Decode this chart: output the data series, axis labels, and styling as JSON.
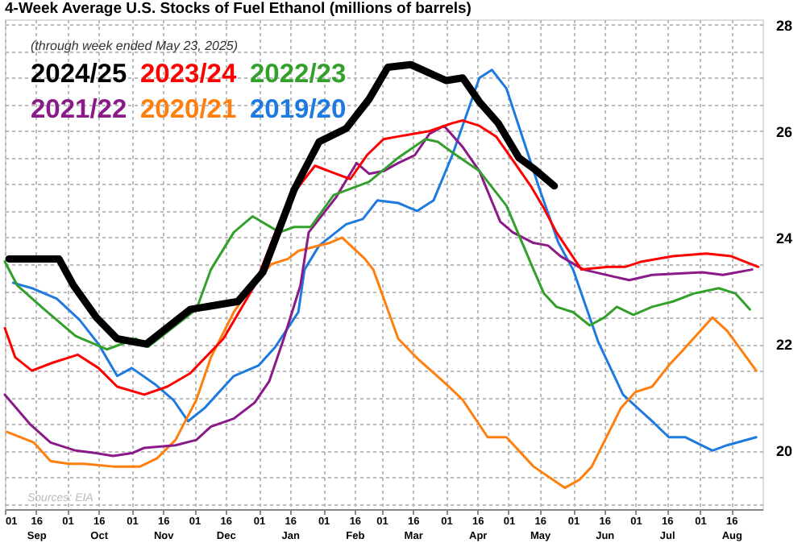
{
  "chart_data": {
    "type": "line",
    "title": "4-Week Average U.S. Stocks of Fuel Ethanol (millions of barrels)",
    "subtitle": "(through week ended May 23, 2025)",
    "xlim": [
      "2024-09-01",
      "2025-08-31"
    ],
    "xticks": [
      {
        "value": "2024-09-01",
        "label": "01"
      },
      {
        "value": "2024-09-16",
        "label": "16\nSep"
      },
      {
        "value": "2024-10-01",
        "label": "01"
      },
      {
        "value": "2024-10-16",
        "label": "16\nOct"
      },
      {
        "value": "2024-11-01",
        "label": "01"
      },
      {
        "value": "2024-11-16",
        "label": "16\nNov"
      },
      {
        "value": "2024-12-01",
        "label": "01"
      },
      {
        "value": "2024-12-16",
        "label": "16\nDec"
      },
      {
        "value": "2025-01-01",
        "label": "01"
      },
      {
        "value": "2025-01-16",
        "label": "16\nJan"
      },
      {
        "value": "2025-02-01",
        "label": "01"
      },
      {
        "value": "2025-02-16",
        "label": "16\nFeb"
      },
      {
        "value": "2025-03-01",
        "label": "01"
      },
      {
        "value": "2025-03-16",
        "label": "16\nMar"
      },
      {
        "value": "2025-04-01",
        "label": "01"
      },
      {
        "value": "2025-04-16",
        "label": "16\nApr"
      },
      {
        "value": "2025-05-01",
        "label": "01"
      },
      {
        "value": "2025-05-16",
        "label": "16\nMay"
      },
      {
        "value": "2025-06-01",
        "label": "01"
      },
      {
        "value": "2025-06-16",
        "label": "16\nJun"
      },
      {
        "value": "2025-07-01",
        "label": "01"
      },
      {
        "value": "2025-07-16",
        "label": "16\nJul"
      },
      {
        "value": "2025-08-01",
        "label": "01"
      },
      {
        "value": "2025-08-16",
        "label": "16\nAug"
      }
    ],
    "ylim": [
      18.9,
      28.1
    ],
    "yticks": [
      {
        "value": 19,
        "label": null
      },
      {
        "value": 19.5,
        "label": null
      },
      20,
      {
        "value": 20.5,
        "label": null
      },
      {
        "value": 21,
        "label": null
      },
      {
        "value": 21.5,
        "label": null
      },
      22,
      {
        "value": 22.5,
        "label": null
      },
      {
        "value": 23,
        "label": null
      },
      {
        "value": 23.5,
        "label": null
      },
      24,
      {
        "value": 24.5,
        "label": null
      },
      {
        "value": 25,
        "label": null
      },
      {
        "value": 25.5,
        "label": null
      },
      26,
      {
        "value": 26.5,
        "label": null
      },
      {
        "value": 27,
        "label": null
      },
      {
        "value": 27.5,
        "label": null
      },
      28
    ],
    "grid": true,
    "legend": "top left",
    "annotations": [
      "Sources: EIA"
    ],
    "series": [
      {
        "name": "2024/25",
        "color": "#000000",
        "x": [
          "2024-09-03",
          "2024-09-27",
          "2024-10-04",
          "2024-10-15",
          "2024-10-25",
          "2024-11-08",
          "2024-11-29",
          "2024-12-22",
          "2025-01-03",
          "2025-01-18",
          "2025-01-30",
          "2025-02-12",
          "2025-02-23",
          "2025-03-04",
          "2025-03-15",
          "2025-04-01",
          "2025-04-09",
          "2025-04-17",
          "2025-04-26",
          "2025-05-06",
          "2025-05-13",
          "2025-05-23"
        ],
        "values": [
          23.6,
          23.6,
          23.1,
          22.5,
          22.1,
          22.0,
          22.65,
          22.8,
          23.35,
          24.9,
          25.8,
          26.05,
          26.6,
          27.2,
          27.25,
          26.95,
          27.0,
          26.55,
          26.15,
          25.5,
          25.3,
          24.97
        ]
      },
      {
        "name": "2023/24",
        "color": "#ff0000",
        "x": [
          "2024-09-01",
          "2024-09-06",
          "2024-09-14",
          "2024-09-24",
          "2024-10-06",
          "2024-10-16",
          "2024-10-25",
          "2024-11-07",
          "2024-11-18",
          "2024-11-29",
          "2024-12-15",
          "2024-12-30",
          "2025-01-11",
          "2025-01-18",
          "2025-01-28",
          "2025-02-07",
          "2025-02-14",
          "2025-02-22",
          "2025-03-02",
          "2025-03-09",
          "2025-03-24",
          "2025-04-04",
          "2025-04-09",
          "2025-04-17",
          "2025-04-25",
          "2025-05-04",
          "2025-05-12",
          "2025-05-18",
          "2025-05-24",
          "2025-06-05",
          "2025-06-18",
          "2025-06-26",
          "2025-07-04",
          "2025-07-19",
          "2025-08-04",
          "2025-08-16",
          "2025-08-29"
        ],
        "values": [
          22.3,
          21.75,
          21.5,
          21.65,
          21.8,
          21.55,
          21.2,
          21.05,
          21.2,
          21.45,
          22.1,
          23.1,
          24.3,
          24.85,
          25.35,
          25.2,
          25.1,
          25.55,
          25.85,
          25.9,
          26.0,
          26.15,
          26.2,
          26.1,
          25.9,
          25.4,
          24.95,
          24.55,
          24.1,
          23.4,
          23.45,
          23.45,
          23.55,
          23.65,
          23.7,
          23.65,
          23.45
        ]
      },
      {
        "name": "2022/23",
        "color": "#33a02c",
        "x": [
          "2024-09-01",
          "2024-09-07",
          "2024-09-20",
          "2024-10-05",
          "2024-10-20",
          "2024-11-03",
          "2024-11-09",
          "2024-11-22",
          "2024-12-02",
          "2024-12-09",
          "2024-12-20",
          "2024-12-29",
          "2025-01-11",
          "2025-01-18",
          "2025-01-26",
          "2025-02-06",
          "2025-02-23",
          "2025-03-09",
          "2025-03-22",
          "2025-03-28",
          "2025-04-04",
          "2025-04-17",
          "2025-04-30",
          "2025-05-13",
          "2025-05-18",
          "2025-05-24",
          "2025-06-01",
          "2025-06-09",
          "2025-06-16",
          "2025-06-22",
          "2025-06-30",
          "2025-07-09",
          "2025-07-19",
          "2025-07-29",
          "2025-08-10",
          "2025-08-18",
          "2025-08-25"
        ],
        "values": [
          23.55,
          23.1,
          22.65,
          22.15,
          21.9,
          22.1,
          21.95,
          22.35,
          22.65,
          23.4,
          24.1,
          24.4,
          24.1,
          24.2,
          24.2,
          24.8,
          25.05,
          25.5,
          25.85,
          25.8,
          25.6,
          25.25,
          24.6,
          23.4,
          22.95,
          22.7,
          22.6,
          22.35,
          22.5,
          22.7,
          22.55,
          22.7,
          22.8,
          22.95,
          23.05,
          22.95,
          22.65
        ]
      },
      {
        "name": "2021/22",
        "color": "#8b1a89",
        "x": [
          "2024-09-01",
          "2024-09-13",
          "2024-09-23",
          "2024-10-05",
          "2024-10-15",
          "2024-10-23",
          "2024-11-01",
          "2024-11-07",
          "2024-11-22",
          "2024-12-02",
          "2024-12-09",
          "2024-12-20",
          "2024-12-30",
          "2025-01-06",
          "2025-01-13",
          "2025-01-21",
          "2025-01-25",
          "2025-02-07",
          "2025-02-17",
          "2025-02-23",
          "2025-03-02",
          "2025-03-09",
          "2025-03-17",
          "2025-03-24",
          "2025-03-31",
          "2025-04-09",
          "2025-04-17",
          "2025-04-27",
          "2025-05-03",
          "2025-05-13",
          "2025-05-20",
          "2025-05-26",
          "2025-06-06",
          "2025-06-28",
          "2025-07-09",
          "2025-08-02",
          "2025-08-12",
          "2025-08-26"
        ],
        "values": [
          21.05,
          20.5,
          20.15,
          20.0,
          19.95,
          19.9,
          19.95,
          20.05,
          20.1,
          20.2,
          20.45,
          20.6,
          20.9,
          21.3,
          22.1,
          23.1,
          24.1,
          24.75,
          25.4,
          25.2,
          25.25,
          25.4,
          25.55,
          25.95,
          26.1,
          25.7,
          25.25,
          24.3,
          24.1,
          23.9,
          23.85,
          23.65,
          23.4,
          23.2,
          23.3,
          23.35,
          23.3,
          23.4
        ]
      },
      {
        "name": "2020/21",
        "color": "#ff7f0e",
        "x": [
          "2024-09-02",
          "2024-09-15",
          "2024-09-23",
          "2024-10-02",
          "2024-10-09",
          "2024-10-23",
          "2024-11-05",
          "2024-11-13",
          "2024-11-22",
          "2024-12-02",
          "2024-12-09",
          "2024-12-20",
          "2024-12-28",
          "2025-01-07",
          "2025-01-15",
          "2025-01-20",
          "2025-02-04",
          "2025-02-10",
          "2025-02-21",
          "2025-02-25",
          "2025-03-09",
          "2025-03-19",
          "2025-04-01",
          "2025-04-09",
          "2025-04-21",
          "2025-04-30",
          "2025-05-13",
          "2025-05-28",
          "2025-06-04",
          "2025-06-10",
          "2025-06-24",
          "2025-07-01",
          "2025-07-09",
          "2025-07-17",
          "2025-07-23",
          "2025-08-07",
          "2025-08-14",
          "2025-08-28"
        ],
        "values": [
          20.35,
          20.15,
          19.8,
          19.75,
          19.75,
          19.7,
          19.7,
          19.85,
          20.2,
          20.95,
          21.75,
          22.6,
          23.05,
          23.5,
          23.6,
          23.75,
          23.9,
          24.0,
          23.6,
          23.4,
          22.1,
          21.7,
          21.25,
          20.95,
          20.25,
          20.25,
          19.7,
          19.3,
          19.45,
          19.7,
          20.8,
          21.1,
          21.2,
          21.6,
          21.85,
          22.5,
          22.25,
          21.5
        ]
      },
      {
        "name": "2019/20",
        "color": "#1f7ae0",
        "x": [
          "2024-09-05",
          "2024-09-14",
          "2024-09-26",
          "2024-10-07",
          "2024-10-16",
          "2024-10-25",
          "2024-11-01",
          "2024-11-12",
          "2024-11-21",
          "2024-11-28",
          "2024-12-06",
          "2024-12-20",
          "2025-01-01",
          "2025-01-09",
          "2025-01-20",
          "2025-01-23",
          "2025-01-30",
          "2025-02-12",
          "2025-02-20",
          "2025-02-27",
          "2025-03-09",
          "2025-03-18",
          "2025-03-26",
          "2025-04-04",
          "2025-04-17",
          "2025-04-23",
          "2025-04-30",
          "2025-05-08",
          "2025-05-16",
          "2025-05-25",
          "2025-06-01",
          "2025-06-13",
          "2025-06-25",
          "2025-07-09",
          "2025-07-17",
          "2025-07-25",
          "2025-08-07",
          "2025-08-14",
          "2025-08-28"
        ],
        "values": [
          23.15,
          23.05,
          22.85,
          22.45,
          22.0,
          21.4,
          21.55,
          21.25,
          20.95,
          20.55,
          20.8,
          21.4,
          21.6,
          21.95,
          22.6,
          23.4,
          23.85,
          24.25,
          24.35,
          24.7,
          24.65,
          24.5,
          24.7,
          25.55,
          27.0,
          27.15,
          26.8,
          25.85,
          24.9,
          23.9,
          23.4,
          22.05,
          21.05,
          20.55,
          20.25,
          20.25,
          20.0,
          20.1,
          20.25
        ]
      }
    ]
  }
}
